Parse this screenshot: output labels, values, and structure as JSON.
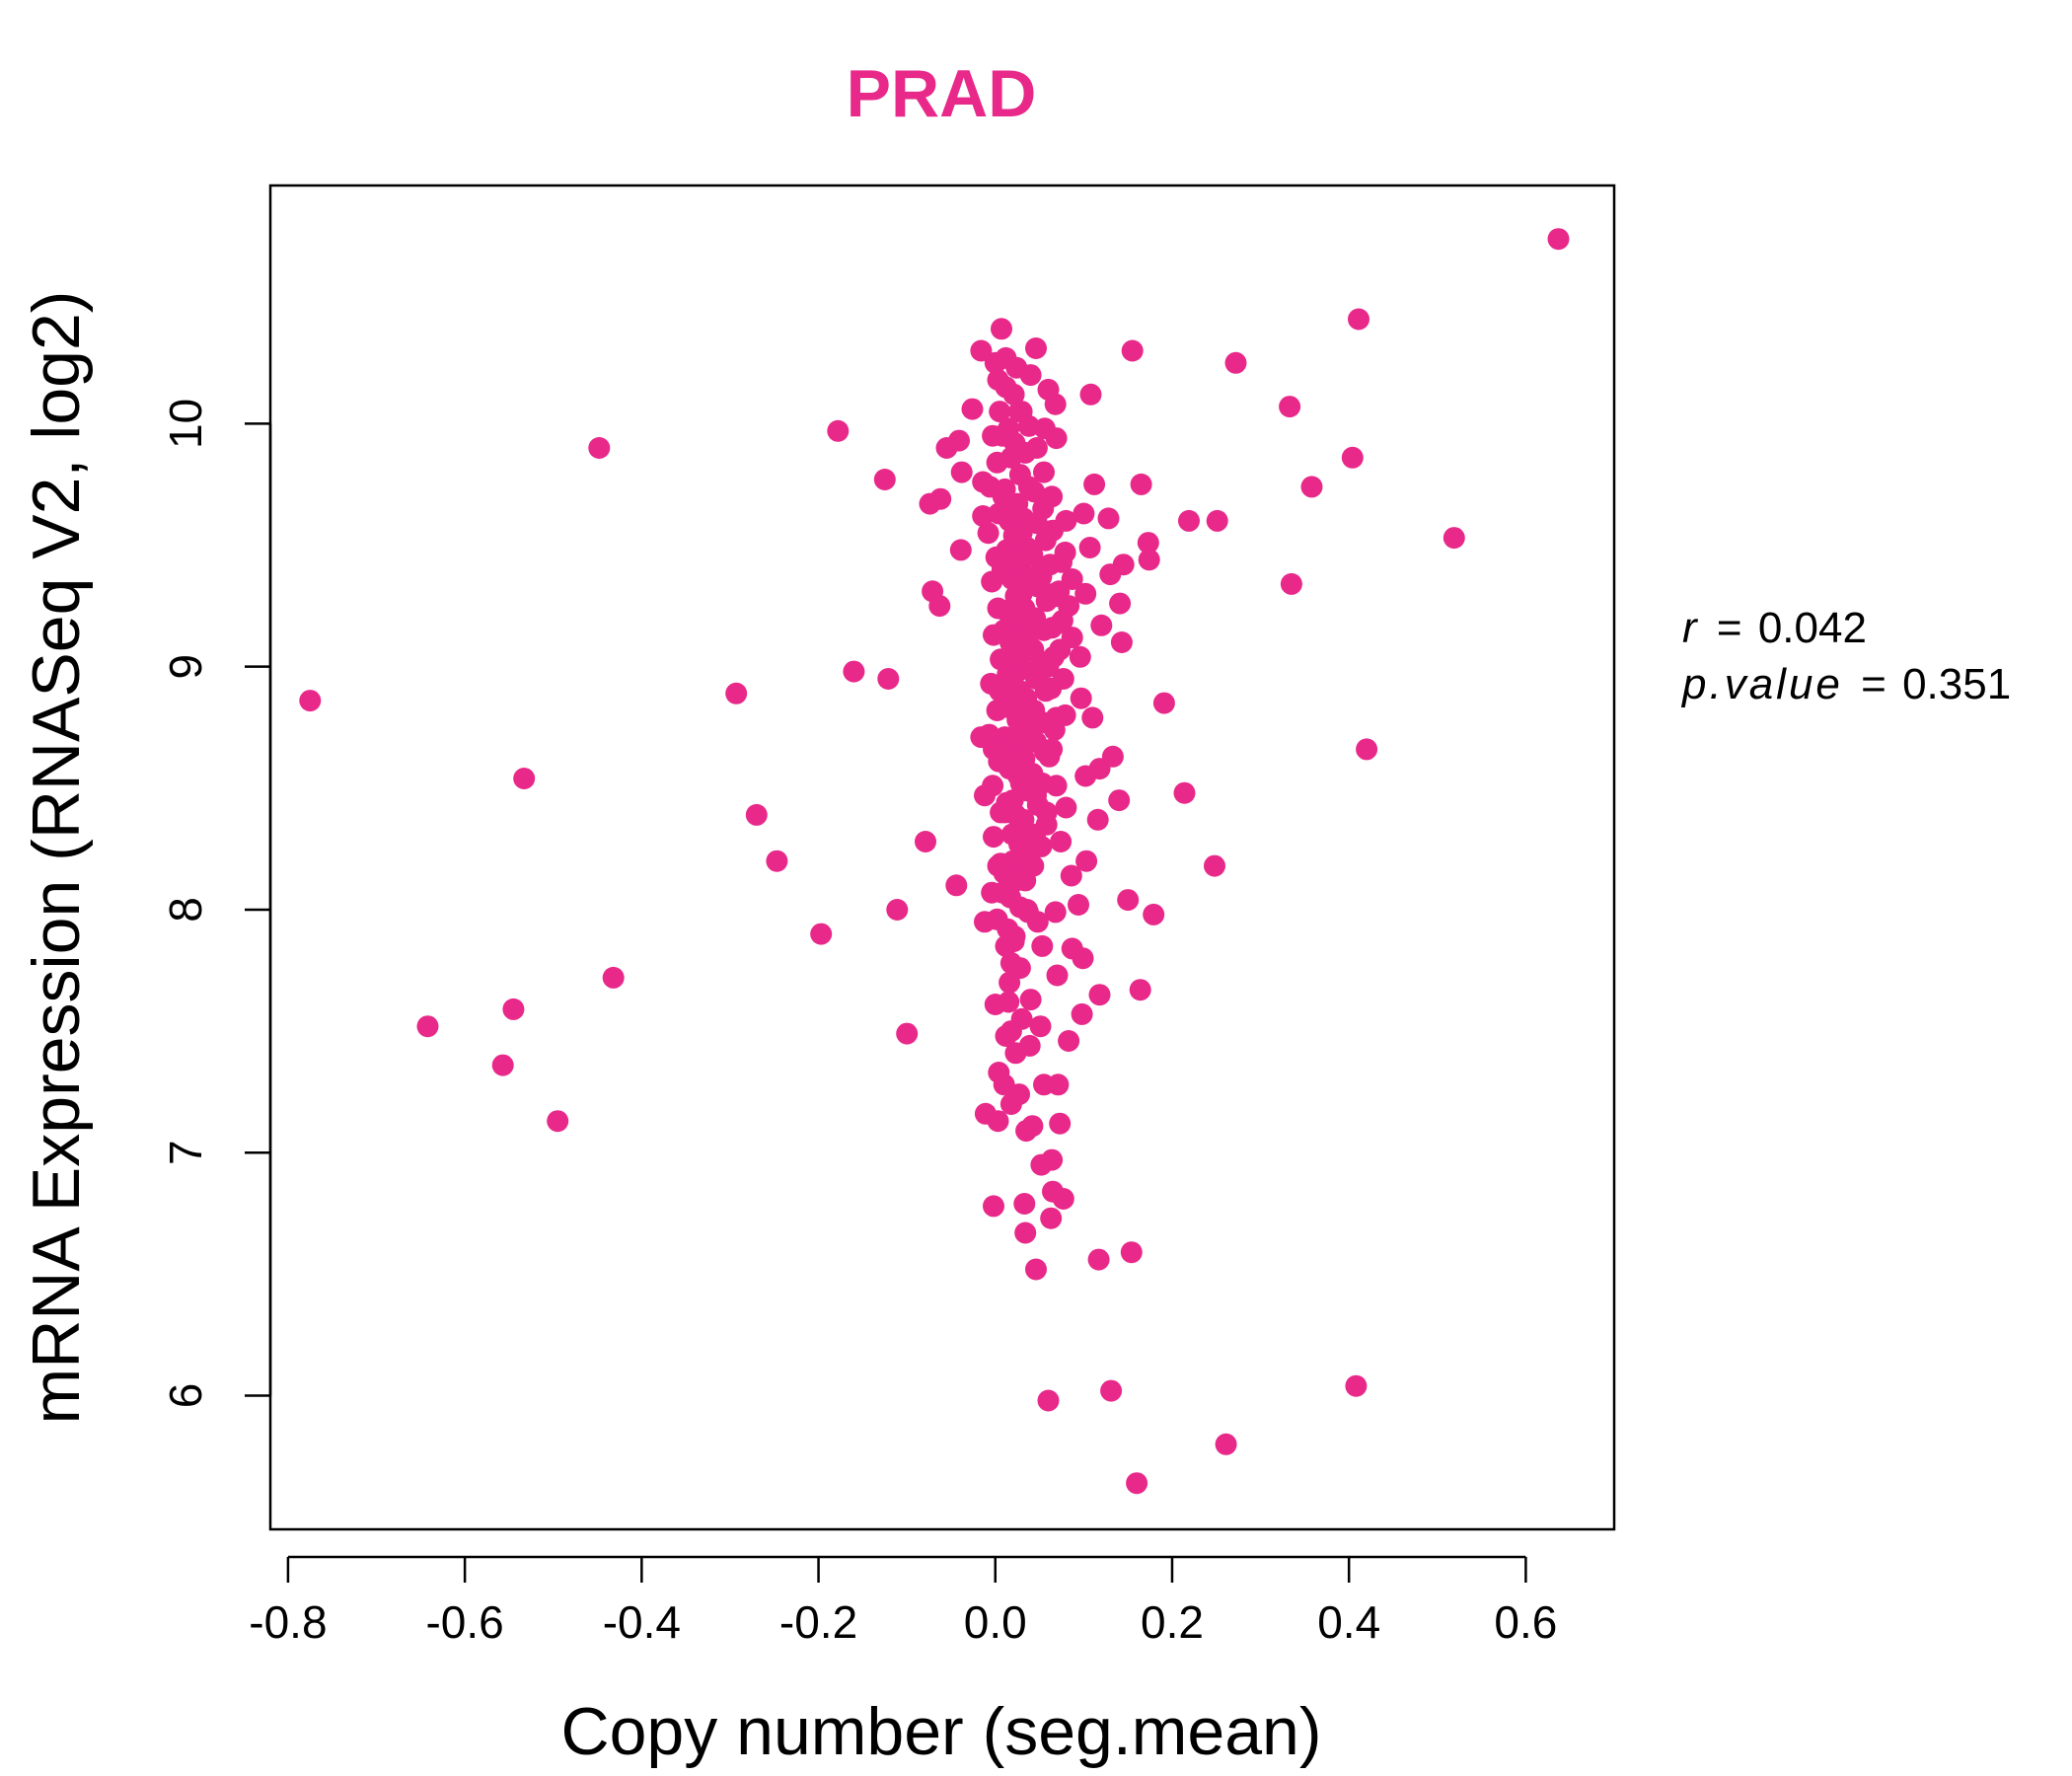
{
  "chart_data": {
    "type": "scatter",
    "title": "PRAD",
    "xlabel": "Copy number (seg.mean)",
    "ylabel": "mRNA Expression (RNASeq V2, log2)",
    "xlim": [
      -0.82,
      0.7
    ],
    "ylim": [
      5.45,
      10.98
    ],
    "xticks": [
      -0.8,
      -0.6,
      -0.4,
      -0.2,
      0.0,
      0.2,
      0.4,
      0.6
    ],
    "xtick_labels": [
      "-0.8",
      "-0.6",
      "-0.4",
      "-0.2",
      "0.0",
      "0.2",
      "0.4",
      "0.6"
    ],
    "yticks": [
      6,
      7,
      8,
      9,
      10
    ],
    "ytick_labels": [
      "6",
      "7",
      "8",
      "9",
      "10"
    ],
    "grid": false,
    "legend": "none",
    "color": "#e8298a",
    "annotations": {
      "r_label": "r",
      "r_value": "0.042",
      "p_label": "p.value",
      "p_value": "0.351"
    },
    "points": [
      [
        0.637,
        10.76
      ],
      [
        0.411,
        10.43
      ],
      [
        0.155,
        10.3
      ],
      [
        0.272,
        10.25
      ],
      [
        0.333,
        10.07
      ],
      [
        0.404,
        9.86
      ],
      [
        0.358,
        9.74
      ],
      [
        0.519,
        9.53
      ],
      [
        0.335,
        9.34
      ],
      [
        0.42,
        8.66
      ],
      [
        0.219,
        9.6
      ],
      [
        0.251,
        9.6
      ],
      [
        0.165,
        9.75
      ],
      [
        0.173,
        9.51
      ],
      [
        0.174,
        9.44
      ],
      [
        0.191,
        8.85
      ],
      [
        0.214,
        8.48
      ],
      [
        0.248,
        8.18
      ],
      [
        0.408,
        6.04
      ],
      [
        0.261,
        5.8
      ],
      [
        0.16,
        5.64
      ],
      [
        0.131,
        6.02
      ],
      [
        0.06,
        5.98
      ],
      [
        0.154,
        6.59
      ],
      [
        0.117,
        6.56
      ],
      [
        0.046,
        6.52
      ],
      [
        -0.775,
        8.86
      ],
      [
        -0.448,
        9.9
      ],
      [
        -0.533,
        8.54
      ],
      [
        -0.432,
        7.72
      ],
      [
        -0.545,
        7.59
      ],
      [
        -0.642,
        7.52
      ],
      [
        -0.557,
        7.36
      ],
      [
        -0.495,
        7.13
      ],
      [
        -0.293,
        8.89
      ],
      [
        -0.27,
        8.39
      ],
      [
        -0.247,
        8.2
      ],
      [
        -0.197,
        7.9
      ],
      [
        -0.178,
        9.97
      ],
      [
        -0.16,
        8.98
      ],
      [
        -0.121,
        8.95
      ],
      [
        -0.125,
        9.77
      ],
      [
        -0.111,
        8.0
      ],
      [
        -0.1,
        7.49
      ],
      [
        -0.079,
        8.28
      ],
      [
        -0.074,
        9.67
      ],
      [
        -0.071,
        9.31
      ],
      [
        -0.063,
        9.25
      ],
      [
        -0.062,
        9.69
      ],
      [
        -0.055,
        9.9
      ],
      [
        -0.044,
        8.1
      ],
      [
        -0.041,
        9.93
      ],
      [
        -0.039,
        9.48
      ],
      [
        -0.038,
        9.8
      ],
      [
        -0.026,
        10.06
      ],
      [
        -0.016,
        10.3
      ],
      [
        -0.014,
        9.76
      ],
      [
        0.007,
        10.39
      ],
      [
        0.046,
        10.31
      ],
      [
        0.06,
        10.14
      ],
      [
        0.068,
        10.08
      ],
      [
        0.108,
        10.12
      ],
      [
        0.069,
        9.94
      ],
      [
        0.1,
        9.63
      ],
      [
        0.112,
        9.75
      ],
      [
        0.107,
        9.49
      ],
      [
        0.128,
        9.61
      ],
      [
        0.13,
        9.38
      ],
      [
        0.145,
        9.42
      ],
      [
        0.141,
        9.26
      ],
      [
        0.102,
        9.3
      ],
      [
        0.12,
        9.17
      ],
      [
        0.143,
        9.1
      ],
      [
        0.096,
        9.04
      ],
      [
        0.097,
        8.87
      ],
      [
        0.11,
        8.79
      ],
      [
        0.133,
        8.63
      ],
      [
        0.118,
        8.58
      ],
      [
        0.102,
        8.55
      ],
      [
        0.14,
        8.45
      ],
      [
        0.116,
        8.37
      ],
      [
        0.103,
        8.2
      ],
      [
        0.094,
        8.02
      ],
      [
        0.15,
        8.04
      ],
      [
        0.179,
        7.98
      ],
      [
        0.099,
        7.8
      ],
      [
        0.118,
        7.65
      ],
      [
        0.164,
        7.67
      ],
      [
        0.098,
        7.57
      ],
      [
        0.083,
        7.46
      ],
      [
        0.07,
        7.73
      ],
      [
        0.087,
        7.84
      ],
      [
        0.073,
        7.12
      ],
      [
        0.064,
        6.97
      ],
      [
        0.063,
        6.73
      ],
      [
        0.065,
        6.84
      ],
      [
        0.077,
        6.81
      ],
      [
        0.034,
        6.67
      ],
      [
        0.033,
        6.79
      ],
      [
        -0.002,
        6.78
      ],
      [
        0.052,
        6.95
      ],
      [
        0.042,
        7.11
      ],
      [
        0.003,
        7.13
      ],
      [
        -0.011,
        7.16
      ],
      [
        0.018,
        7.2
      ],
      [
        0.035,
        7.09
      ],
      [
        0.055,
        7.28
      ],
      [
        0.071,
        7.28
      ],
      [
        0.039,
        7.44
      ],
      [
        0.023,
        7.41
      ],
      [
        0.012,
        7.48
      ],
      [
        0.03,
        7.55
      ],
      [
        0.051,
        7.52
      ],
      [
        0.004,
        7.33
      ],
      [
        0.01,
        7.28
      ],
      [
        0.027,
        7.24
      ],
      [
        0.0,
        7.61
      ],
      [
        0.016,
        7.7
      ],
      [
        0.04,
        7.63
      ],
      [
        0.028,
        7.76
      ],
      [
        0.021,
        7.87
      ],
      [
        0.053,
        7.85
      ],
      [
        0.048,
        7.95
      ],
      [
        0.036,
        8.0
      ],
      [
        0.068,
        7.99
      ],
      [
        0.008,
        8.07
      ],
      [
        0.024,
        8.12
      ],
      [
        0.006,
        8.19
      ],
      [
        0.03,
        8.22
      ],
      [
        0.052,
        8.26
      ],
      [
        0.058,
        8.35
      ],
      [
        0.074,
        8.28
      ],
      [
        0.086,
        8.14
      ],
      [
        0.08,
        8.42
      ],
      [
        0.069,
        8.51
      ],
      [
        0.046,
        8.47
      ],
      [
        0.026,
        8.55
      ],
      [
        0.013,
        8.6
      ],
      [
        -0.002,
        8.66
      ],
      [
        0.038,
        8.7
      ],
      [
        0.061,
        8.63
      ],
      [
        0.067,
        8.74
      ],
      [
        0.079,
        8.8
      ],
      [
        0.021,
        8.82
      ],
      [
        0.005,
        8.9
      ],
      [
        0.046,
        8.95
      ],
      [
        0.06,
        9.0
      ],
      [
        0.087,
        9.12
      ],
      [
        0.074,
        9.18
      ],
      [
        0.083,
        9.25
      ],
      [
        0.066,
        9.3
      ],
      [
        0.052,
        9.37
      ],
      [
        0.079,
        9.47
      ],
      [
        0.087,
        9.36
      ],
      [
        0.08,
        9.6
      ],
      [
        0.064,
        9.7
      ],
      [
        0.055,
        9.8
      ],
      [
        0.047,
        9.9
      ],
      [
        0.038,
        9.99
      ],
      [
        0.056,
        9.98
      ],
      [
        0.03,
        10.05
      ],
      [
        0.021,
        10.12
      ],
      [
        0.04,
        10.2
      ],
      [
        0.012,
        10.27
      ],
      [
        0.0,
        10.25
      ],
      [
        0.003,
        10.18
      ],
      [
        0.005,
        10.05
      ],
      [
        -0.003,
        9.95
      ],
      [
        0.002,
        9.84
      ],
      [
        -0.006,
        9.74
      ],
      [
        0.004,
        9.63
      ],
      [
        -0.008,
        9.55
      ],
      [
        0.001,
        9.45
      ],
      [
        -0.004,
        9.35
      ],
      [
        0.003,
        9.24
      ],
      [
        -0.002,
        9.13
      ],
      [
        0.006,
        9.03
      ],
      [
        -0.005,
        8.93
      ],
      [
        0.002,
        8.82
      ],
      [
        -0.007,
        8.72
      ],
      [
        0.004,
        8.61
      ],
      [
        -0.003,
        8.51
      ],
      [
        0.006,
        8.4
      ],
      [
        -0.002,
        8.3
      ],
      [
        0.003,
        8.18
      ],
      [
        -0.004,
        8.07
      ],
      [
        0.002,
        7.96
      ],
      [
        -0.012,
        7.95
      ],
      [
        -0.012,
        8.47
      ],
      [
        -0.016,
        8.71
      ],
      [
        -0.014,
        9.62
      ],
      [
        0.012,
        10.15
      ],
      [
        0.015,
        9.98
      ],
      [
        0.018,
        9.86
      ],
      [
        0.011,
        9.73
      ],
      [
        0.016,
        9.6
      ],
      [
        0.013,
        9.48
      ],
      [
        0.019,
        9.36
      ],
      [
        0.012,
        9.23
      ],
      [
        0.017,
        9.1
      ],
      [
        0.014,
        8.97
      ],
      [
        0.018,
        8.84
      ],
      [
        0.011,
        8.71
      ],
      [
        0.016,
        8.58
      ],
      [
        0.013,
        8.44
      ],
      [
        0.019,
        8.31
      ],
      [
        0.012,
        8.18
      ],
      [
        0.017,
        8.05
      ],
      [
        0.014,
        7.92
      ],
      [
        0.018,
        7.78
      ],
      [
        0.024,
        10.23
      ],
      [
        0.027,
        10.05
      ],
      [
        0.022,
        9.92
      ],
      [
        0.028,
        9.79
      ],
      [
        0.025,
        9.67
      ],
      [
        0.021,
        9.54
      ],
      [
        0.029,
        9.41
      ],
      [
        0.023,
        9.29
      ],
      [
        0.026,
        9.16
      ],
      [
        0.022,
        9.03
      ],
      [
        0.028,
        8.9
      ],
      [
        0.025,
        8.78
      ],
      [
        0.021,
        8.65
      ],
      [
        0.029,
        8.52
      ],
      [
        0.023,
        8.39
      ],
      [
        0.027,
        8.27
      ],
      [
        0.024,
        8.14
      ],
      [
        0.028,
        8.01
      ],
      [
        0.022,
        7.89
      ],
      [
        0.034,
        9.88
      ],
      [
        0.038,
        9.74
      ],
      [
        0.032,
        9.61
      ],
      [
        0.036,
        9.49
      ],
      [
        0.039,
        9.37
      ],
      [
        0.033,
        9.24
      ],
      [
        0.037,
        9.12
      ],
      [
        0.031,
        8.99
      ],
      [
        0.035,
        8.87
      ],
      [
        0.039,
        8.74
      ],
      [
        0.033,
        8.62
      ],
      [
        0.036,
        8.49
      ],
      [
        0.032,
        8.37
      ],
      [
        0.038,
        8.24
      ],
      [
        0.034,
        8.12
      ],
      [
        0.037,
        7.99
      ],
      [
        0.044,
        9.72
      ],
      [
        0.047,
        9.59
      ],
      [
        0.042,
        9.46
      ],
      [
        0.048,
        9.33
      ],
      [
        0.045,
        9.2
      ],
      [
        0.043,
        9.07
      ],
      [
        0.049,
        8.95
      ],
      [
        0.044,
        8.82
      ],
      [
        0.046,
        8.69
      ],
      [
        0.042,
        8.56
      ],
      [
        0.048,
        8.43
      ],
      [
        0.045,
        8.31
      ],
      [
        0.043,
        8.18
      ],
      [
        0.054,
        9.65
      ],
      [
        0.057,
        9.52
      ],
      [
        0.053,
        9.4
      ],
      [
        0.058,
        9.27
      ],
      [
        0.055,
        9.15
      ],
      [
        0.052,
        9.02
      ],
      [
        0.057,
        8.9
      ],
      [
        0.054,
        8.77
      ],
      [
        0.056,
        8.65
      ],
      [
        0.053,
        8.52
      ],
      [
        0.058,
        8.4
      ],
      [
        0.065,
        9.56
      ],
      [
        0.062,
        9.42
      ],
      [
        0.068,
        9.29
      ],
      [
        0.064,
        9.16
      ],
      [
        0.066,
        9.04
      ],
      [
        0.063,
        8.91
      ],
      [
        0.069,
        8.79
      ],
      [
        0.064,
        8.66
      ],
      [
        0.075,
        9.43
      ],
      [
        0.072,
        9.31
      ],
      [
        0.076,
        9.19
      ],
      [
        0.073,
        9.07
      ],
      [
        0.077,
        8.95
      ],
      [
        0.008,
        9.4
      ],
      [
        0.01,
        9.15
      ],
      [
        0.009,
        8.9
      ],
      [
        0.007,
        8.65
      ],
      [
        0.011,
        8.4
      ],
      [
        0.009,
        9.7
      ],
      [
        0.008,
        9.95
      ],
      [
        0.01,
        8.15
      ],
      [
        0.012,
        7.85
      ],
      [
        0.015,
        7.62
      ],
      [
        0.018,
        7.5
      ],
      [
        0.02,
        9.45
      ],
      [
        0.02,
        9.2
      ],
      [
        0.02,
        8.95
      ],
      [
        0.02,
        8.7
      ],
      [
        0.02,
        8.45
      ],
      [
        0.02,
        8.2
      ],
      [
        0.03,
        9.55
      ],
      [
        0.03,
        9.3
      ],
      [
        0.03,
        9.05
      ],
      [
        0.03,
        8.8
      ],
      [
        0.03,
        8.55
      ],
      [
        0.03,
        8.3
      ]
    ]
  }
}
